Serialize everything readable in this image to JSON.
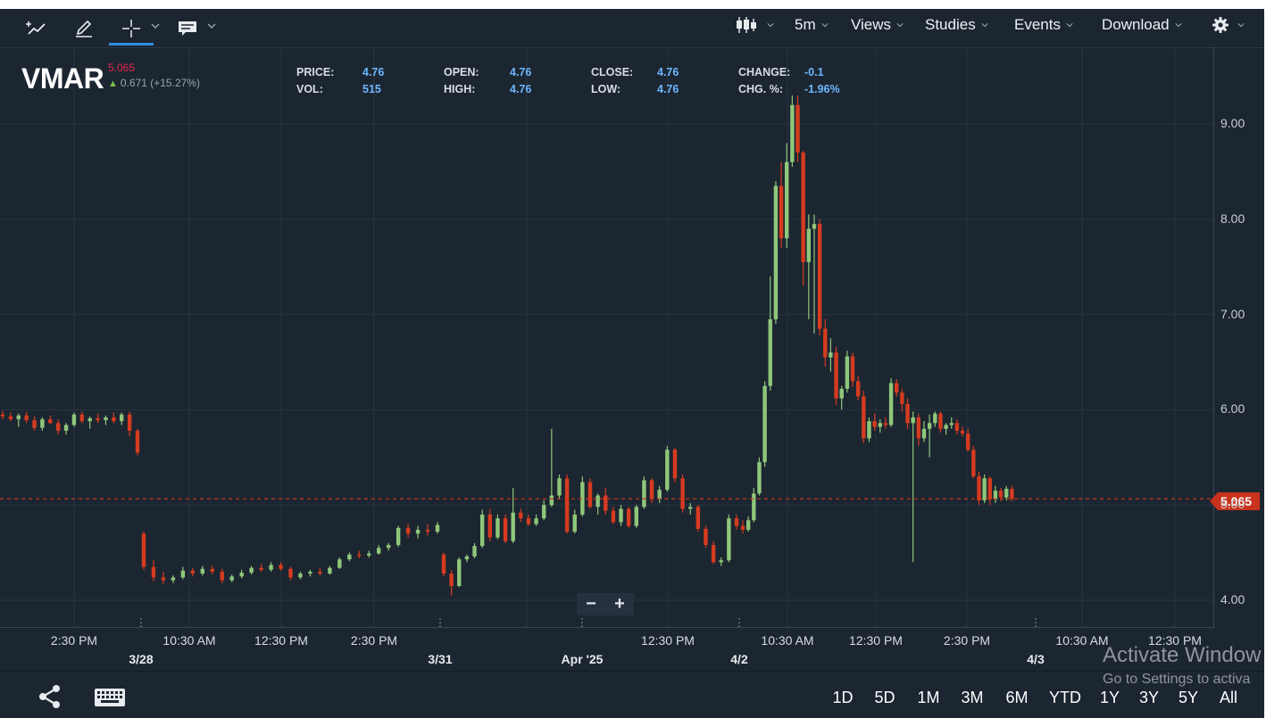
{
  "toolbar": {
    "left_tools": [
      {
        "icon": "trend-line-icon"
      },
      {
        "icon": "pencil-icon"
      },
      {
        "icon": "crosshair-icon",
        "active": true
      },
      {
        "icon": "comment-icon"
      }
    ],
    "chart_type_icon": "candlestick-icon",
    "interval": "5m",
    "menus": [
      "Views",
      "Studies",
      "Events",
      "Download"
    ],
    "settings_icon": "gear-icon"
  },
  "quote": {
    "symbol": "VMAR",
    "last": "5.065",
    "change": "0.671 (+15.27%)"
  },
  "stats": [
    {
      "label": "PRICE:",
      "value": "4.76"
    },
    {
      "label": "VOL:",
      "value": "515"
    },
    {
      "label": "OPEN:",
      "value": "4.76"
    },
    {
      "label": "HIGH:",
      "value": "4.76"
    },
    {
      "label": "CLOSE:",
      "value": "4.76"
    },
    {
      "label": "LOW:",
      "value": "4.76"
    },
    {
      "label": "CHANGE:",
      "value": "-0.1"
    },
    {
      "label": "CHG. %:",
      "value": "-1.96%"
    }
  ],
  "chart_data": {
    "type": "candlestick",
    "y_ticks": [
      "9.00",
      "8.00",
      "7.00",
      "6.00",
      "5.00",
      "4.00"
    ],
    "ylim": [
      3.8,
      9.6
    ],
    "x_tick_labels": [
      "2:30 PM",
      "10:30 AM",
      "12:30 PM",
      "2:30 PM",
      "12:30 PM",
      "10:30 AM",
      "12:30 PM",
      "2:30 PM",
      "10:30 AM",
      "12:30 PM"
    ],
    "x_date_labels": [
      "3/28",
      "3/31",
      "Apr '25",
      "4/2",
      "4/3"
    ],
    "last_price": 5.065,
    "price_line_label": "5.065",
    "candles": [
      [
        5.95,
        5.99,
        5.9,
        5.93
      ],
      [
        5.93,
        5.97,
        5.88,
        5.9
      ],
      [
        5.9,
        5.96,
        5.82,
        5.94
      ],
      [
        5.94,
        5.98,
        5.86,
        5.89
      ],
      [
        5.89,
        5.93,
        5.78,
        5.81
      ],
      [
        5.81,
        5.92,
        5.78,
        5.9
      ],
      [
        5.9,
        5.94,
        5.85,
        5.86
      ],
      [
        5.86,
        5.9,
        5.74,
        5.78
      ],
      [
        5.78,
        5.86,
        5.74,
        5.84
      ],
      [
        5.84,
        5.97,
        5.82,
        5.95
      ],
      [
        5.95,
        5.98,
        5.86,
        5.88
      ],
      [
        5.88,
        5.93,
        5.8,
        5.91
      ],
      [
        5.91,
        5.96,
        5.86,
        5.89
      ],
      [
        5.89,
        5.94,
        5.84,
        5.92
      ],
      [
        5.92,
        5.97,
        5.86,
        5.88
      ],
      [
        5.88,
        5.97,
        5.84,
        5.95
      ],
      [
        5.95,
        5.98,
        5.72,
        5.78
      ],
      [
        5.78,
        5.8,
        5.52,
        5.55
      ],
      [
        4.7,
        4.72,
        4.32,
        4.35
      ],
      [
        4.35,
        4.42,
        4.2,
        4.24
      ],
      [
        4.24,
        4.3,
        4.17,
        4.21
      ],
      [
        4.21,
        4.26,
        4.18,
        4.24
      ],
      [
        4.24,
        4.35,
        4.22,
        4.31
      ],
      [
        4.31,
        4.34,
        4.25,
        4.28
      ],
      [
        4.28,
        4.36,
        4.26,
        4.33
      ],
      [
        4.33,
        4.36,
        4.27,
        4.3
      ],
      [
        4.3,
        4.33,
        4.18,
        4.21
      ],
      [
        4.21,
        4.27,
        4.19,
        4.25
      ],
      [
        4.25,
        4.32,
        4.23,
        4.29
      ],
      [
        4.29,
        4.36,
        4.27,
        4.34
      ],
      [
        4.34,
        4.38,
        4.3,
        4.32
      ],
      [
        4.32,
        4.4,
        4.3,
        4.37
      ],
      [
        4.37,
        4.4,
        4.31,
        4.33
      ],
      [
        4.33,
        4.35,
        4.21,
        4.24
      ],
      [
        4.24,
        4.3,
        4.22,
        4.28
      ],
      [
        4.28,
        4.32,
        4.25,
        4.3
      ],
      [
        4.3,
        4.34,
        4.26,
        4.28
      ],
      [
        4.28,
        4.36,
        4.27,
        4.34
      ],
      [
        4.34,
        4.45,
        4.33,
        4.43
      ],
      [
        4.43,
        4.5,
        4.41,
        4.48
      ],
      [
        4.48,
        4.52,
        4.44,
        4.47
      ],
      [
        4.47,
        4.52,
        4.45,
        4.49
      ],
      [
        4.49,
        4.58,
        4.48,
        4.55
      ],
      [
        4.55,
        4.6,
        4.52,
        4.58
      ],
      [
        4.58,
        4.78,
        4.56,
        4.76
      ],
      [
        4.76,
        4.8,
        4.66,
        4.7
      ],
      [
        4.7,
        4.78,
        4.65,
        4.74
      ],
      [
        4.74,
        4.8,
        4.68,
        4.72
      ],
      [
        4.72,
        4.82,
        4.7,
        4.79
      ],
      [
        4.48,
        4.5,
        4.25,
        4.28
      ],
      [
        4.28,
        4.32,
        4.05,
        4.15
      ],
      [
        4.15,
        4.45,
        4.14,
        4.43
      ],
      [
        4.43,
        4.48,
        4.4,
        4.46
      ],
      [
        4.46,
        4.6,
        4.44,
        4.57
      ],
      [
        4.57,
        4.95,
        4.55,
        4.9
      ],
      [
        4.9,
        4.96,
        4.62,
        4.66
      ],
      [
        4.66,
        4.9,
        4.64,
        4.86
      ],
      [
        4.86,
        4.9,
        4.6,
        4.62
      ],
      [
        4.62,
        5.18,
        4.6,
        4.92
      ],
      [
        4.92,
        4.96,
        4.82,
        4.86
      ],
      [
        4.86,
        4.9,
        4.78,
        4.8
      ],
      [
        4.8,
        4.9,
        4.78,
        4.86
      ],
      [
        4.86,
        5.05,
        4.84,
        5.0
      ],
      [
        5.0,
        5.8,
        4.98,
        5.1
      ],
      [
        5.1,
        5.32,
        5.06,
        5.28
      ],
      [
        5.28,
        5.32,
        4.7,
        4.72
      ],
      [
        4.72,
        4.95,
        4.7,
        4.9
      ],
      [
        4.9,
        5.3,
        4.88,
        5.24
      ],
      [
        5.24,
        5.28,
        4.96,
        4.98
      ],
      [
        4.98,
        5.12,
        4.9,
        5.1
      ],
      [
        5.1,
        5.18,
        4.9,
        4.94
      ],
      [
        4.94,
        4.98,
        4.8,
        4.82
      ],
      [
        4.82,
        5.0,
        4.78,
        4.96
      ],
      [
        4.96,
        4.98,
        4.76,
        4.78
      ],
      [
        4.78,
        5.0,
        4.76,
        4.98
      ],
      [
        4.98,
        5.3,
        4.96,
        5.26
      ],
      [
        5.26,
        5.28,
        5.02,
        5.06
      ],
      [
        5.06,
        5.2,
        5.02,
        5.16
      ],
      [
        5.16,
        5.62,
        5.14,
        5.58
      ],
      [
        5.58,
        5.6,
        5.24,
        5.28
      ],
      [
        5.28,
        5.32,
        4.92,
        4.96
      ],
      [
        4.96,
        5.02,
        4.9,
        4.98
      ],
      [
        4.98,
        5.0,
        4.72,
        4.75
      ],
      [
        4.75,
        4.78,
        4.55,
        4.58
      ],
      [
        4.58,
        4.62,
        4.38,
        4.4
      ],
      [
        4.4,
        4.45,
        4.36,
        4.42
      ],
      [
        4.42,
        4.9,
        4.4,
        4.86
      ],
      [
        4.86,
        4.9,
        4.74,
        4.78
      ],
      [
        4.78,
        4.84,
        4.7,
        4.74
      ],
      [
        4.74,
        4.88,
        4.72,
        4.84
      ],
      [
        4.84,
        5.18,
        4.82,
        5.12
      ],
      [
        5.12,
        5.5,
        5.1,
        5.45
      ],
      [
        5.45,
        6.3,
        5.4,
        6.25
      ],
      [
        6.25,
        7.4,
        6.2,
        6.95
      ],
      [
        6.95,
        8.4,
        6.9,
        8.35
      ],
      [
        8.35,
        8.6,
        7.7,
        7.8
      ],
      [
        7.8,
        8.8,
        7.7,
        8.6
      ],
      [
        8.6,
        9.3,
        8.55,
        9.2
      ],
      [
        9.2,
        9.3,
        8.6,
        8.7
      ],
      [
        8.7,
        8.72,
        7.3,
        7.55
      ],
      [
        7.55,
        8.05,
        6.95,
        7.9
      ],
      [
        7.9,
        8.05,
        6.8,
        7.95
      ],
      [
        7.95,
        8.0,
        6.78,
        6.85
      ],
      [
        6.85,
        6.95,
        6.45,
        6.55
      ],
      [
        6.55,
        6.75,
        6.4,
        6.6
      ],
      [
        6.6,
        6.66,
        6.05,
        6.12
      ],
      [
        6.12,
        6.25,
        6.0,
        6.22
      ],
      [
        6.22,
        6.62,
        6.18,
        6.56
      ],
      [
        6.56,
        6.6,
        6.24,
        6.3
      ],
      [
        6.3,
        6.36,
        6.1,
        6.14
      ],
      [
        6.14,
        6.2,
        5.65,
        5.7
      ],
      [
        5.7,
        5.92,
        5.66,
        5.88
      ],
      [
        5.88,
        5.96,
        5.78,
        5.82
      ],
      [
        5.82,
        5.9,
        5.76,
        5.86
      ],
      [
        5.86,
        5.92,
        5.8,
        5.84
      ],
      [
        5.84,
        6.33,
        5.82,
        6.28
      ],
      [
        6.28,
        6.32,
        6.14,
        6.18
      ],
      [
        6.18,
        6.22,
        5.98,
        6.06
      ],
      [
        6.06,
        6.12,
        5.8,
        5.86
      ],
      [
        5.86,
        5.98,
        4.4,
        5.92
      ],
      [
        5.92,
        5.96,
        5.62,
        5.7
      ],
      [
        5.7,
        5.88,
        5.66,
        5.8
      ],
      [
        5.8,
        5.95,
        5.5,
        5.86
      ],
      [
        5.86,
        5.98,
        5.82,
        5.96
      ],
      [
        5.96,
        5.98,
        5.76,
        5.8
      ],
      [
        5.8,
        5.86,
        5.74,
        5.84
      ],
      [
        5.84,
        5.92,
        5.8,
        5.86
      ],
      [
        5.86,
        5.9,
        5.74,
        5.78
      ],
      [
        5.78,
        5.82,
        5.72,
        5.75
      ],
      [
        5.75,
        5.8,
        5.56,
        5.58
      ],
      [
        5.58,
        5.62,
        5.28,
        5.3
      ],
      [
        5.3,
        5.35,
        5.0,
        5.05
      ],
      [
        5.05,
        5.32,
        5.02,
        5.28
      ],
      [
        5.28,
        5.3,
        5.0,
        5.06
      ],
      [
        5.06,
        5.2,
        5.02,
        5.15
      ],
      [
        5.15,
        5.18,
        5.04,
        5.08
      ],
      [
        5.08,
        5.2,
        5.05,
        5.17
      ],
      [
        5.17,
        5.2,
        5.04,
        5.065
      ]
    ]
  },
  "zoom": {
    "minus": "−",
    "plus": "+"
  },
  "bottom": {
    "icons": [
      "share-icon",
      "keyboard-icon"
    ],
    "ranges": [
      "1D",
      "5D",
      "1M",
      "3M",
      "6M",
      "YTD",
      "1Y",
      "3Y",
      "5Y",
      "All"
    ]
  },
  "watermark": {
    "title": "Activate Window",
    "subtitle": "Go to Settings to activa"
  },
  "colors": {
    "background": "#1c2631",
    "up": "#8fc77a",
    "down": "#d63b1f",
    "accent": "#2f8fe0",
    "price_tag": "#c8331d"
  }
}
